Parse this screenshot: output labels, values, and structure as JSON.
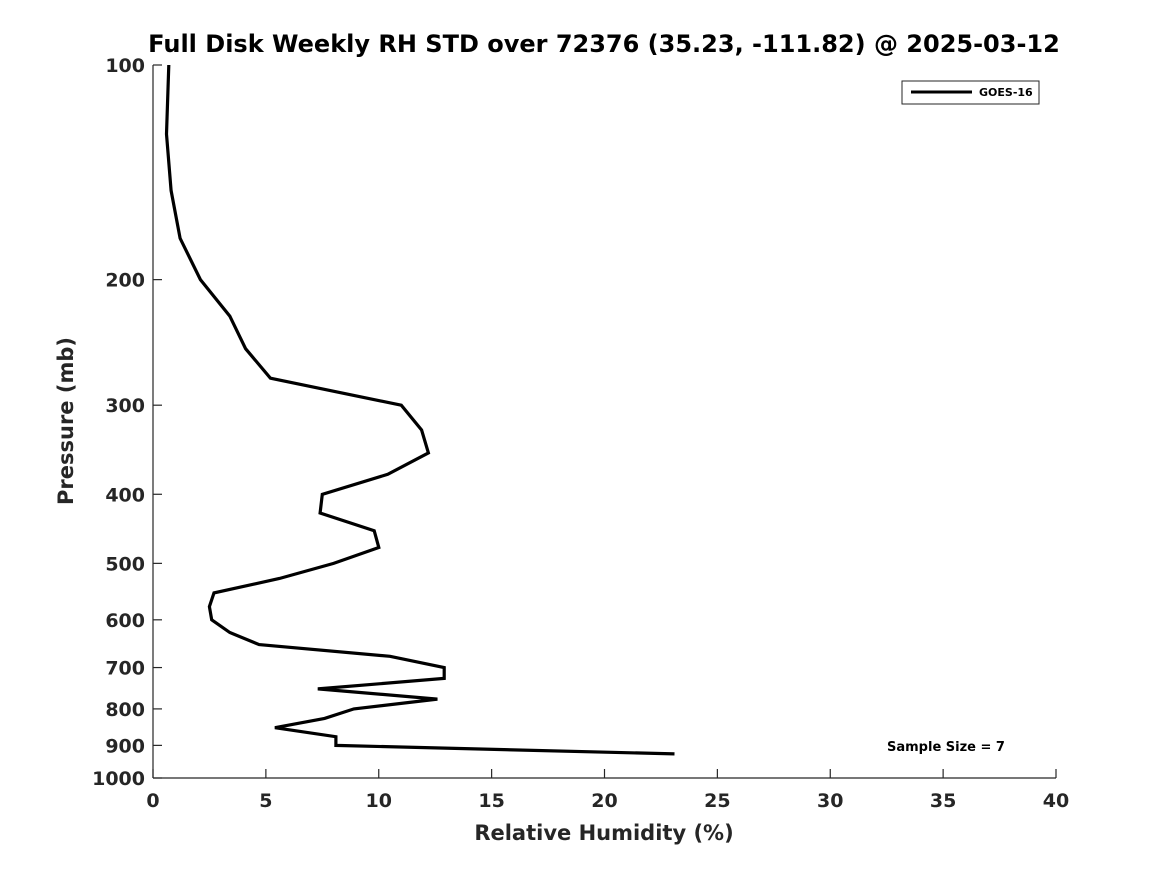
{
  "chart_data": {
    "type": "line",
    "title": "Full Disk Weekly RH STD over 72376 (35.23, -111.82) @ 2025-03-12",
    "xlabel": "Relative Humidity (%)",
    "ylabel": "Pressure (mb)",
    "xlim": [
      0,
      40
    ],
    "ylim": [
      100,
      1000
    ],
    "y_scale": "log",
    "y_reversed": true,
    "x_ticks": [
      0,
      5,
      10,
      15,
      20,
      25,
      30,
      35,
      40
    ],
    "x_tick_labels": [
      "0",
      "5",
      "10",
      "15",
      "20",
      "25",
      "30",
      "35",
      "40"
    ],
    "y_ticks": [
      100,
      200,
      300,
      400,
      500,
      600,
      700,
      800,
      900,
      1000
    ],
    "y_tick_labels": [
      "100",
      "200",
      "300",
      "400",
      "500",
      "600",
      "700",
      "800",
      "900",
      "1000"
    ],
    "grid": false,
    "legend_position": "top-right",
    "series": [
      {
        "name": "GOES-16",
        "color": "#000000",
        "points": [
          [
            0.7,
            100
          ],
          [
            0.6,
            125
          ],
          [
            0.8,
            150
          ],
          [
            1.2,
            175
          ],
          [
            2.1,
            200
          ],
          [
            3.4,
            225
          ],
          [
            4.1,
            250
          ],
          [
            5.2,
            275
          ],
          [
            11.0,
            300
          ],
          [
            11.9,
            325
          ],
          [
            12.2,
            350
          ],
          [
            10.4,
            375
          ],
          [
            7.5,
            400
          ],
          [
            7.4,
            425
          ],
          [
            9.8,
            450
          ],
          [
            10.0,
            475
          ],
          [
            8.0,
            500
          ],
          [
            5.6,
            525
          ],
          [
            2.7,
            550
          ],
          [
            2.5,
            575
          ],
          [
            2.6,
            600
          ],
          [
            3.4,
            625
          ],
          [
            4.7,
            650
          ],
          [
            10.5,
            675
          ],
          [
            12.9,
            700
          ],
          [
            12.9,
            725
          ],
          [
            7.3,
            750
          ],
          [
            12.6,
            775
          ],
          [
            8.9,
            800
          ],
          [
            7.6,
            825
          ],
          [
            5.4,
            850
          ],
          [
            8.1,
            875
          ],
          [
            8.1,
            900
          ],
          [
            23.1,
            925
          ]
        ]
      }
    ],
    "annotations": [
      "Sample Size = 7"
    ]
  }
}
